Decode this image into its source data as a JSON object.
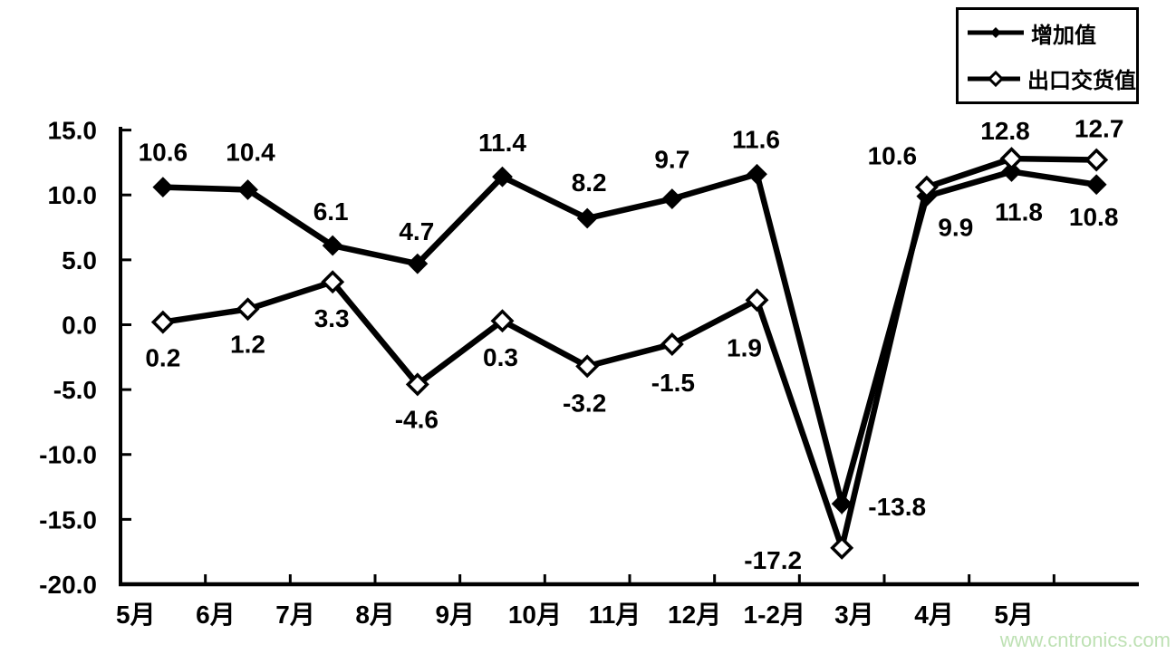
{
  "watermark": "www.cntronics.com",
  "colors": {
    "series": "#000000",
    "background": "#ffffff",
    "watermark": "#bee1b4"
  },
  "chart_data": {
    "type": "line",
    "categories": [
      "5月",
      "6月",
      "7月",
      "8月",
      "9月",
      "10月",
      "11月",
      "12月",
      "1-2月",
      "3月",
      "4月",
      "5月"
    ],
    "series": [
      {
        "name": "增加值",
        "marker": "filled-diamond",
        "values": [
          10.6,
          10.4,
          6.1,
          4.7,
          11.4,
          8.2,
          9.7,
          11.6,
          -13.8,
          9.9,
          11.8,
          10.8
        ],
        "label_offsets": [
          [
            0,
            -39
          ],
          [
            3,
            -42
          ],
          [
            -2,
            -38
          ],
          [
            -1,
            -36
          ],
          [
            0,
            -38
          ],
          [
            2,
            -40
          ],
          [
            0,
            -44
          ],
          [
            -1,
            -39
          ],
          [
            61,
            3
          ],
          [
            32,
            34
          ],
          [
            8,
            44
          ],
          [
            -3,
            35
          ]
        ]
      },
      {
        "name": "出口交货值",
        "marker": "open-diamond",
        "values": [
          0.2,
          1.2,
          3.3,
          -4.6,
          0.3,
          -3.2,
          -1.5,
          1.9,
          -17.2,
          10.6,
          12.8,
          12.7
        ],
        "label_offsets": [
          [
            0,
            39
          ],
          [
            0,
            38
          ],
          [
            -1,
            40
          ],
          [
            -1,
            38
          ],
          [
            -2,
            40
          ],
          [
            -3,
            40
          ],
          [
            1,
            42
          ],
          [
            -14,
            52
          ],
          [
            -76,
            13
          ],
          [
            -38,
            -35
          ],
          [
            -7,
            -31
          ],
          [
            3,
            -35
          ]
        ]
      }
    ],
    "yticks": [
      15.0,
      10.0,
      5.0,
      0.0,
      -5.0,
      -10.0,
      -15.0,
      -20.0
    ],
    "ytick_labels": [
      "15.0",
      "10.0",
      "5.0",
      "0.0",
      "-5.0",
      "-10.0",
      "-15.0",
      "-20.0"
    ],
    "ylim": [
      -20,
      15
    ],
    "xlabel": "",
    "ylabel": "",
    "title": "",
    "grid": false,
    "legend_position": "top-right"
  }
}
